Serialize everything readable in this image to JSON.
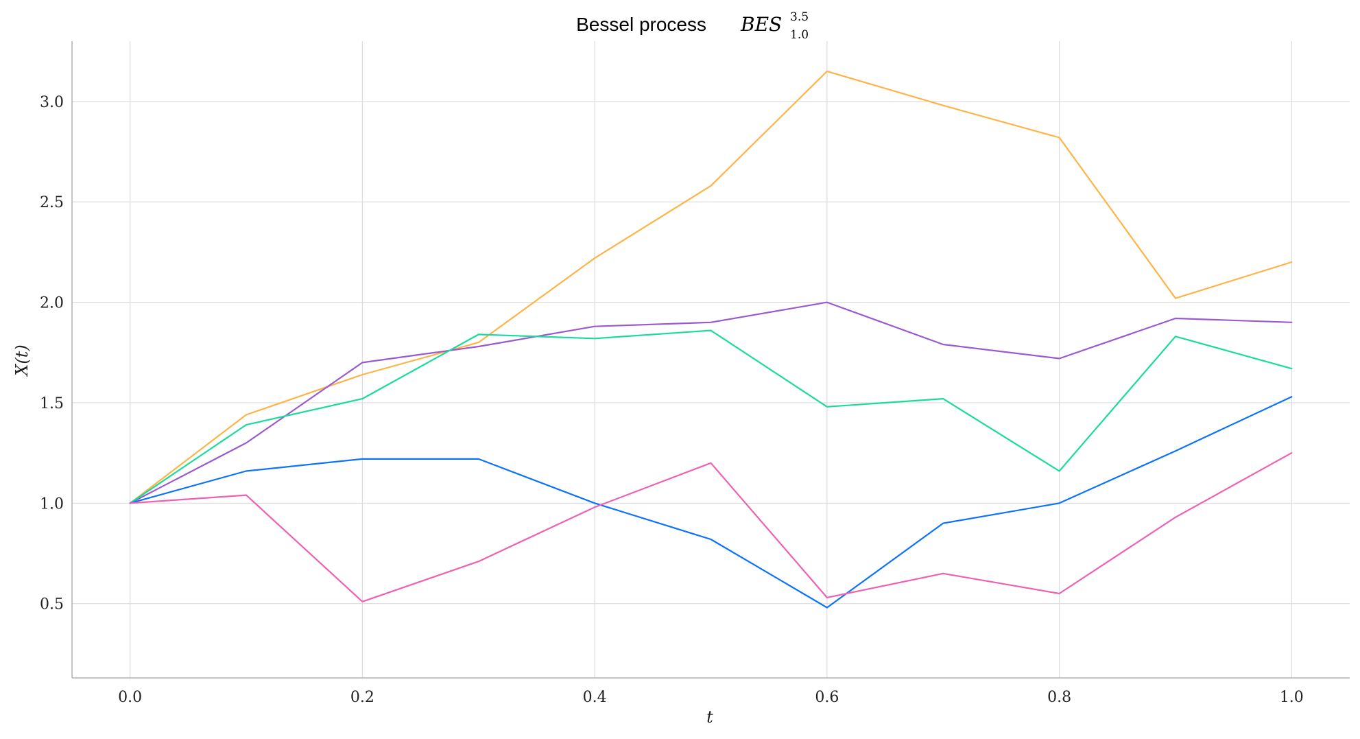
{
  "chart_data": {
    "type": "line",
    "title": {
      "prefix": "Bessel process",
      "symbol": "BES",
      "superscript": "3.5",
      "subscript": "1.0"
    },
    "xlabel": "t",
    "ylabel": "X(t)",
    "xlim": [
      -0.05,
      1.05
    ],
    "ylim": [
      0.13,
      3.3
    ],
    "xticks": [
      0.0,
      0.2,
      0.4,
      0.6,
      0.8,
      1.0
    ],
    "xtick_labels": [
      "0.0",
      "0.2",
      "0.4",
      "0.6",
      "0.8",
      "1.0"
    ],
    "yticks": [
      0.5,
      1.0,
      1.5,
      2.0,
      2.5,
      3.0
    ],
    "ytick_labels": [
      "0.5",
      "1.0",
      "1.5",
      "2.0",
      "2.5",
      "3.0"
    ],
    "grid": true,
    "x": [
      0.0,
      0.1,
      0.2,
      0.3,
      0.4,
      0.5,
      0.6,
      0.7,
      0.8,
      0.9,
      1.0
    ],
    "series": [
      {
        "color": "#ffb347",
        "values": [
          1.0,
          1.44,
          1.64,
          1.8,
          2.22,
          2.58,
          3.15,
          2.98,
          2.82,
          2.02,
          2.2
        ]
      },
      {
        "color": "#9b59d0",
        "values": [
          1.0,
          1.3,
          1.7,
          1.78,
          1.88,
          1.9,
          2.0,
          1.79,
          1.72,
          1.92,
          1.9
        ]
      },
      {
        "color": "#1adb9c",
        "values": [
          1.0,
          1.39,
          1.52,
          1.84,
          1.82,
          1.86,
          1.48,
          1.52,
          1.16,
          1.83,
          1.67
        ]
      },
      {
        "color": "#0a72ff",
        "values": [
          1.0,
          1.16,
          1.22,
          1.22,
          1.0,
          0.82,
          0.48,
          0.9,
          1.0,
          1.26,
          1.53
        ]
      },
      {
        "color": "#f060b0",
        "values": [
          1.0,
          1.04,
          0.51,
          0.71,
          0.98,
          1.2,
          0.53,
          0.65,
          0.55,
          0.93,
          1.25
        ]
      }
    ]
  }
}
